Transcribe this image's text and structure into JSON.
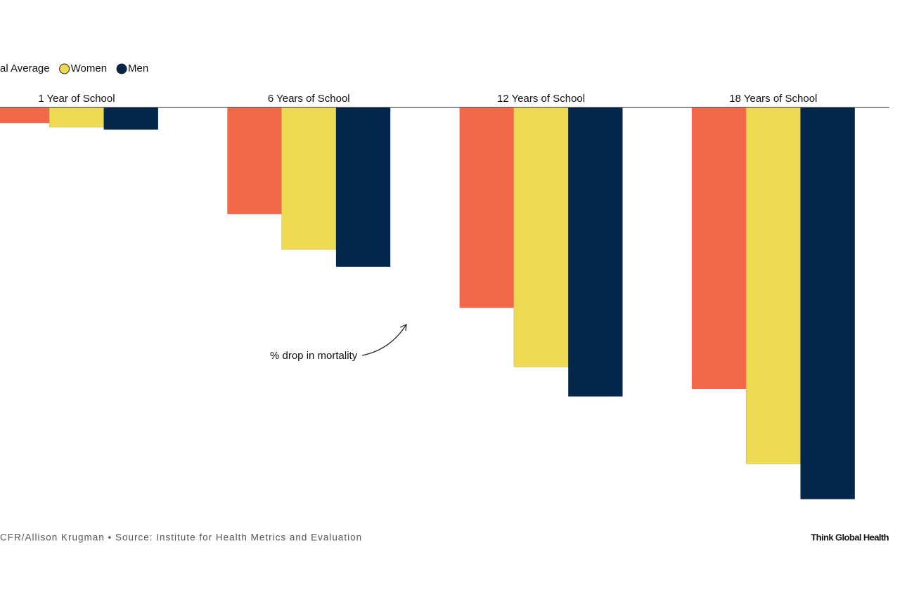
{
  "chart_data": {
    "type": "bar",
    "categories": [
      "1 Year of School",
      "6 Years of School",
      "12 Years of School",
      "18 Years of School"
    ],
    "series": [
      {
        "name": "al Average",
        "color": "#f4684a",
        "values": [
          1.9,
          13.0,
          24.4,
          34.3
        ]
      },
      {
        "name": "Women",
        "color": "#eed952",
        "values": [
          2.4,
          17.3,
          31.6,
          43.4
        ]
      },
      {
        "name": "Men",
        "color": "#03264a",
        "values": [
          2.7,
          19.4,
          35.2,
          47.7
        ]
      }
    ],
    "ylim": [
      0,
      50
    ],
    "annotation": "% drop in mortality",
    "source": "CFR/Allison Krugman • Source: Institute for Health Metrics and Evaluation",
    "brand": "Think Global Health"
  }
}
